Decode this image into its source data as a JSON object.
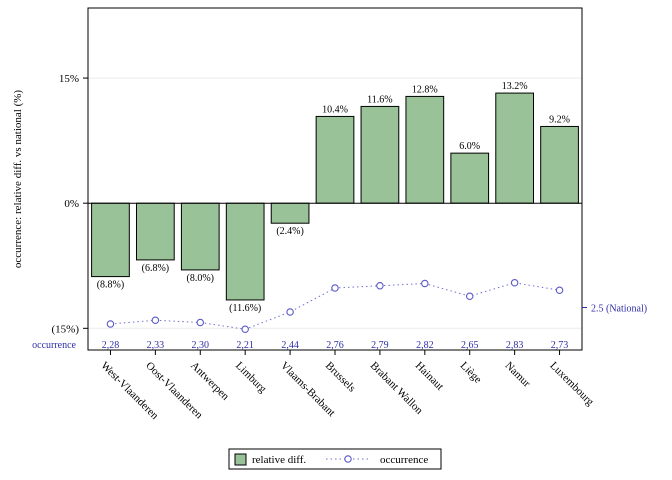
{
  "chart_data": {
    "type": "bar",
    "ylabel": "occurrence: relative diff. vs national (%)",
    "ylim": [
      -17.6,
      23.4
    ],
    "yticks": [
      {
        "value": 15,
        "label": "15%"
      },
      {
        "value": 0,
        "label": "0%"
      },
      {
        "value": -15,
        "label": "(15%)"
      }
    ],
    "grid": true,
    "categories": [
      "West-Vlaanderen",
      "Oost-Vlaanderen",
      "Antwerpen",
      "Limburg",
      "Vlaams-Brabant",
      "Brussels",
      "Brabant Wallon",
      "Hainaut",
      "Liège",
      "Namur",
      "Luxembourg"
    ],
    "series": [
      {
        "name": "relative diff.",
        "type": "bar",
        "color": "#99c299",
        "values": [
          -8.8,
          -6.8,
          -8.0,
          -11.6,
          -2.4,
          10.4,
          11.6,
          12.8,
          6.0,
          13.2,
          9.2
        ],
        "labels": [
          "(8.8%)",
          "(6.8%)",
          "(8.0%)",
          "(11.6%)",
          "(2.4%)",
          "10.4%",
          "11.6%",
          "12.8%",
          "6.0%",
          "13.2%",
          "9.2%"
        ]
      },
      {
        "name": "occurrence",
        "type": "line",
        "color": "#2e2ea8",
        "values": [
          2.28,
          2.33,
          2.3,
          2.21,
          2.44,
          2.76,
          2.79,
          2.82,
          2.65,
          2.83,
          2.73
        ],
        "labels": [
          "2,28",
          "2,33",
          "2,30",
          "2,21",
          "2,44",
          "2,76",
          "2,79",
          "2,82",
          "2,65",
          "2,83",
          "2,73"
        ]
      }
    ],
    "national_reference": {
      "value": 2.5,
      "label": "2.5 (National)"
    },
    "occurrence_row_label": "occurrence",
    "legend": {
      "position": "bottom"
    }
  }
}
